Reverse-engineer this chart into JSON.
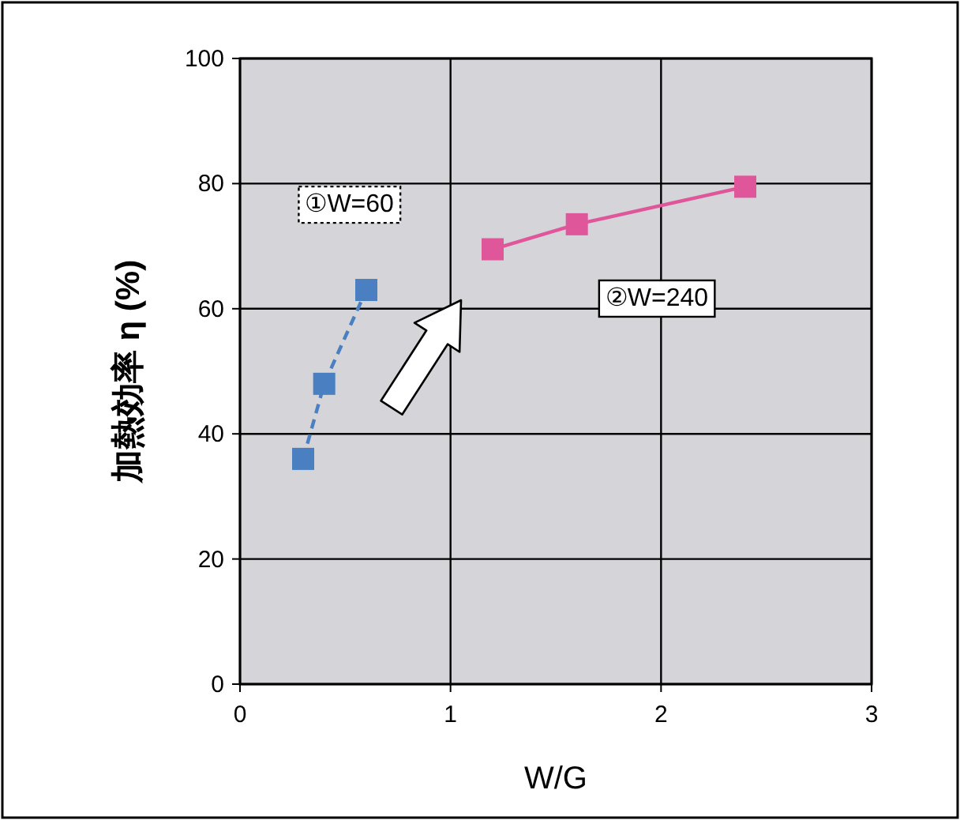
{
  "chart_data": {
    "type": "line",
    "xlabel": "W/G",
    "ylabel": "加熱効率 η (%)",
    "xlim": [
      0,
      3
    ],
    "ylim": [
      0,
      100
    ],
    "xticks": [
      0,
      1,
      2,
      3
    ],
    "yticks": [
      0,
      20,
      40,
      60,
      80,
      100
    ],
    "grid": true,
    "marker": "square",
    "series": [
      {
        "name": "①W=60",
        "color": "#4a7fc1",
        "line_style": "dashed",
        "x": [
          0.3,
          0.4,
          0.6
        ],
        "values": [
          36,
          48,
          63
        ]
      },
      {
        "name": "②W=240",
        "color": "#e0569b",
        "line_style": "solid",
        "x": [
          1.2,
          1.6,
          2.4
        ],
        "values": [
          69.5,
          73.5,
          79.5
        ]
      }
    ]
  }
}
